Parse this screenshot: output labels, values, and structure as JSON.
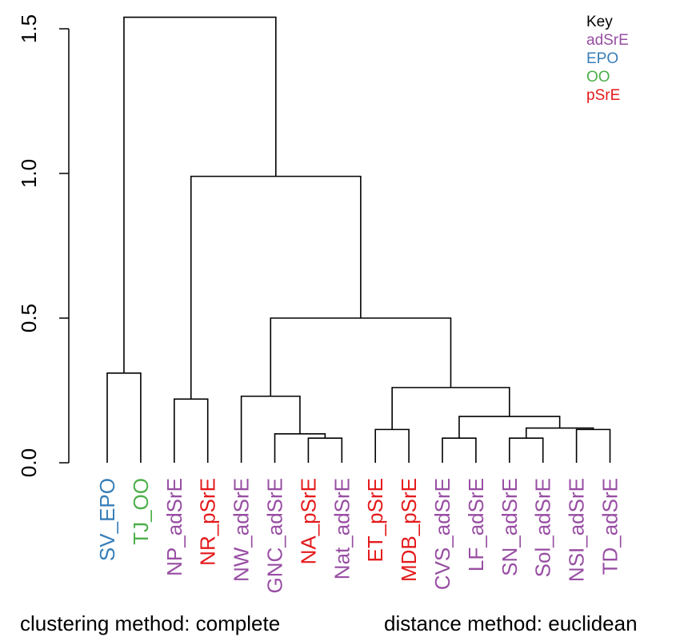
{
  "chart_data": {
    "type": "dendrogram",
    "y_ticks": [
      {
        "value": 0.0,
        "label": "0.0"
      },
      {
        "value": 0.5,
        "label": "0.5"
      },
      {
        "value": 1.0,
        "label": "1.0"
      },
      {
        "value": 1.5,
        "label": "1.5"
      }
    ],
    "ylim": [
      0,
      1.55
    ],
    "leaves": [
      {
        "label": "SV_EPO",
        "group": "EPO"
      },
      {
        "label": "TJ_OO",
        "group": "OO"
      },
      {
        "label": "NP_adSrE",
        "group": "adSrE"
      },
      {
        "label": "NR_pSrE",
        "group": "pSrE"
      },
      {
        "label": "NW_adSrE",
        "group": "adSrE"
      },
      {
        "label": "GNC_adSrE",
        "group": "adSrE"
      },
      {
        "label": "NA_pSrE",
        "group": "pSrE"
      },
      {
        "label": "Nat_adSrE",
        "group": "adSrE"
      },
      {
        "label": "ET_pSrE",
        "group": "pSrE"
      },
      {
        "label": "MDB_pSrE",
        "group": "pSrE"
      },
      {
        "label": "CVS_adSrE",
        "group": "adSrE"
      },
      {
        "label": "LF_adSrE",
        "group": "adSrE"
      },
      {
        "label": "SN_adSrE",
        "group": "adSrE"
      },
      {
        "label": "Sol_adSrE",
        "group": "adSrE"
      },
      {
        "label": "NSI_adSrE",
        "group": "adSrE"
      },
      {
        "label": "TD_adSrE",
        "group": "adSrE"
      }
    ],
    "merges": [
      {
        "left": "SV_EPO",
        "right": "TJ_OO",
        "height": 0.31
      },
      {
        "left": "NP_adSrE",
        "right": "NR_pSrE",
        "height": 0.22
      },
      {
        "left": "NA_pSrE",
        "right": "Nat_adSrE",
        "height": 0.085
      },
      {
        "left": "GNC_adSrE",
        "right": "m3",
        "height": 0.1
      },
      {
        "left": "NW_adSrE",
        "right": "m4",
        "height": 0.23
      },
      {
        "left": "ET_pSrE",
        "right": "MDB_pSrE",
        "height": 0.115
      },
      {
        "left": "CVS_adSrE",
        "right": "LF_adSrE",
        "height": 0.085
      },
      {
        "left": "SN_adSrE",
        "right": "Sol_adSrE",
        "height": 0.085
      },
      {
        "left": "NSI_adSrE",
        "right": "TD_adSrE",
        "height": 0.115
      },
      {
        "left": "m8",
        "right": "m9",
        "height": 0.12
      },
      {
        "left": "m7",
        "right": "m10",
        "height": 0.16
      },
      {
        "left": "m6",
        "right": "m11",
        "height": 0.26
      },
      {
        "left": "m5",
        "right": "m12",
        "height": 0.5
      },
      {
        "left": "m2",
        "right": "m13",
        "height": 0.99
      },
      {
        "left": "m1",
        "right": "m14",
        "height": 1.54
      }
    ],
    "legend": {
      "title": "Key",
      "placement": "top-right",
      "items": [
        {
          "label": "adSrE",
          "color": "#984EA3"
        },
        {
          "label": "EPO",
          "color": "#377EB8"
        },
        {
          "label": "OO",
          "color": "#4DAF4A"
        },
        {
          "label": "pSrE",
          "color": "#E41A1C"
        }
      ]
    },
    "xlabel_left": "clustering method: complete",
    "xlabel_right": "distance method: euclidean"
  }
}
